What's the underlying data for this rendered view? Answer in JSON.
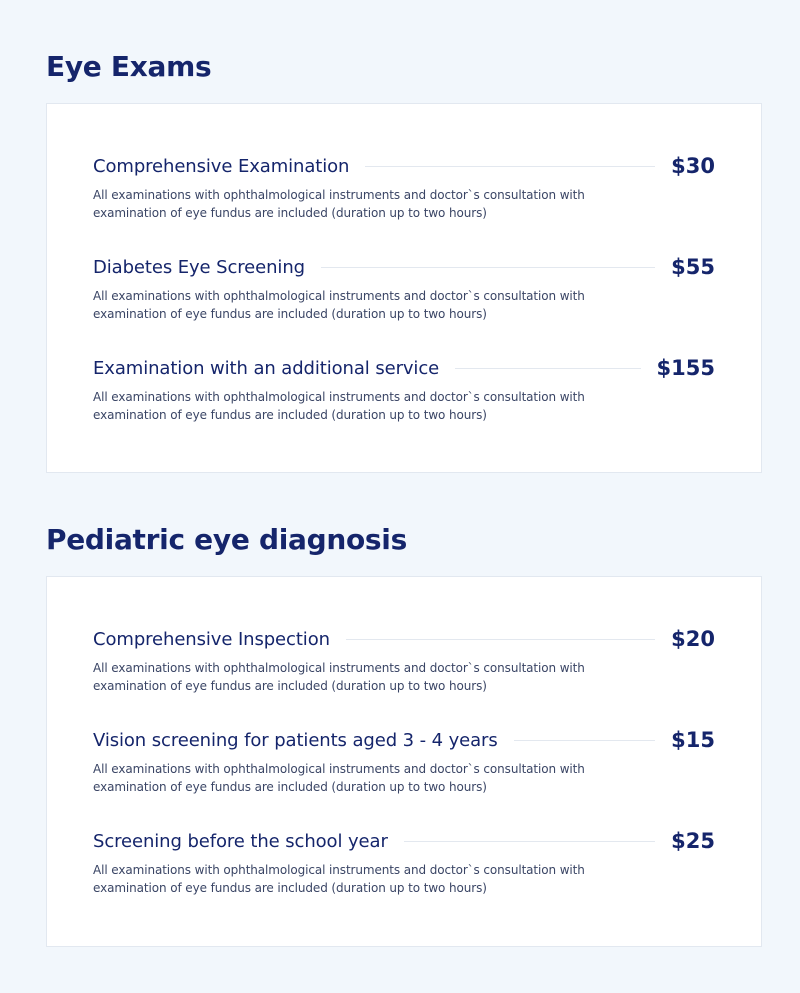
{
  "sections": [
    {
      "title": "Eye Exams",
      "items": [
        {
          "name": "Comprehensive Examination",
          "price": "$30",
          "description": "All examinations with ophthalmological instruments and doctor`s consultation with examination of eye fundus are included (duration up to two hours)"
        },
        {
          "name": "Diabetes Eye Screening",
          "price": "$55",
          "description": "All examinations with ophthalmological instruments and doctor`s consultation with examination of eye fundus are included (duration up to two hours)"
        },
        {
          "name": "Examination with an additional service",
          "price": "$155",
          "description": "All examinations with ophthalmological instruments and doctor`s consultation with examination of eye fundus are included (duration up to two hours)"
        }
      ]
    },
    {
      "title": "Pediatric eye diagnosis",
      "items": [
        {
          "name": "Comprehensive Inspection",
          "price": "$20",
          "description": "All examinations with ophthalmological instruments and doctor`s consultation with examination of eye fundus are included (duration up to two hours)"
        },
        {
          "name": "Vision screening for patients aged 3 - 4 years",
          "price": "$15",
          "description": "All examinations with ophthalmological instruments and doctor`s consultation with examination of eye fundus are included (duration up to two hours)"
        },
        {
          "name": "Screening before the school year",
          "price": "$25",
          "description": "All examinations with ophthalmological instruments and doctor`s consultation with examination of eye fundus are included (duration up to two hours)"
        }
      ]
    }
  ],
  "colors": {
    "background": "#f2f7fc",
    "heading": "#15256b",
    "text": "#3a4565",
    "divider": "#e3e8ef"
  }
}
